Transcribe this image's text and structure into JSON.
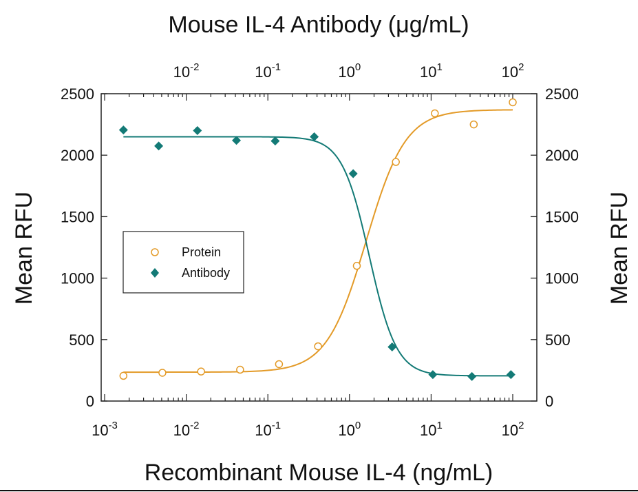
{
  "chart_data": {
    "type": "scatter",
    "title": "Mouse IL-4 Antibody (μg/mL)",
    "xlabel": "Recombinant Mouse IL-4 (ng/mL)",
    "ylabel": "Mean RFU",
    "ylabel_right": "Mean RFU",
    "x_scale": "log",
    "x_bottom_range": [
      0.001,
      200
    ],
    "x_top_range_offset_decades": 0,
    "ylim": [
      0,
      2500
    ],
    "yticks": [
      0,
      500,
      1000,
      1500,
      2000,
      2500
    ],
    "ytick_labels": [
      "0",
      "500",
      "1000",
      "1500",
      "2000",
      "2500"
    ],
    "bottom_ticks": [
      {
        "base": "10",
        "exp": "-3"
      },
      {
        "base": "10",
        "exp": "-2"
      },
      {
        "base": "10",
        "exp": "-1"
      },
      {
        "base": "10",
        "exp": "0"
      },
      {
        "base": "10",
        "exp": "1"
      },
      {
        "base": "10",
        "exp": "2"
      }
    ],
    "top_ticks": [
      {
        "base": "10",
        "exp": "-2"
      },
      {
        "base": "10",
        "exp": "-1"
      },
      {
        "base": "10",
        "exp": "0"
      },
      {
        "base": "10",
        "exp": "1"
      },
      {
        "base": "10",
        "exp": "2"
      }
    ],
    "legend_position": "center-left",
    "grid": false,
    "series": [
      {
        "name": "Protein",
        "axis": "bottom",
        "marker": "open-circle",
        "color": "#e39a27",
        "x": [
          0.0017,
          0.0051,
          0.0152,
          0.0457,
          0.137,
          0.412,
          1.23,
          3.7,
          11.1,
          33.3,
          100
        ],
        "y": [
          205,
          230,
          240,
          255,
          300,
          445,
          1100,
          1945,
          2340,
          2250,
          2430
        ],
        "fit": {
          "bottom": 235,
          "top": 2370,
          "ec50": 1.6,
          "hill": 1.8
        }
      },
      {
        "name": "Antibody",
        "axis": "bottom",
        "marker": "filled-diamond",
        "color": "#137a76",
        "x": [
          0.0017,
          0.0046,
          0.0137,
          0.0412,
          0.123,
          0.37,
          1.11,
          3.33,
          10.5,
          31.6,
          95
        ],
        "y": [
          2205,
          2075,
          2200,
          2120,
          2115,
          2150,
          1850,
          440,
          215,
          200,
          215
        ],
        "fit": {
          "bottom": 205,
          "top": 2150,
          "ec50": 1.75,
          "hill": -2.6
        }
      }
    ]
  }
}
